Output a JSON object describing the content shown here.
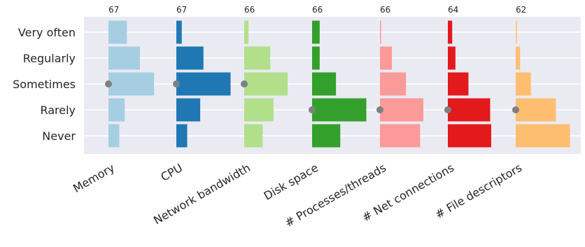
{
  "chart_data": {
    "type": "bar",
    "orientation": "horizontal-histograms",
    "levels": [
      "Very often",
      "Regularly",
      "Sometimes",
      "Rarely",
      "Never"
    ],
    "grid": true,
    "series": [
      {
        "name": "Memory",
        "count": "67",
        "values": [
          17,
          29,
          42,
          15,
          10
        ],
        "median": "Sometimes",
        "color": "#a6cee3"
      },
      {
        "name": "CPU",
        "count": "67",
        "values": [
          5,
          25,
          50,
          22,
          10
        ],
        "median": "Sometimes",
        "color": "#1f78b4"
      },
      {
        "name": "Network bandwidth",
        "count": "66",
        "values": [
          4,
          24,
          40,
          27,
          17
        ],
        "median": "Sometimes",
        "color": "#b2df8a"
      },
      {
        "name": "Disk space",
        "count": "66",
        "values": [
          7,
          7,
          22,
          50,
          26
        ],
        "median": "Rarely",
        "color": "#33a02c"
      },
      {
        "name": "# Processes/threads",
        "count": "66",
        "values": [
          1,
          11,
          24,
          40,
          37
        ],
        "median": "Rarely",
        "color": "#fb9a99"
      },
      {
        "name": "# Net connections",
        "count": "64",
        "values": [
          4,
          7,
          19,
          39,
          40
        ],
        "median": "Rarely",
        "color": "#e31a1c"
      },
      {
        "name": "# File descriptors",
        "count": "62",
        "values": [
          1,
          4,
          14,
          37,
          50
        ],
        "median": "Rarely",
        "color": "#fdbf6f"
      }
    ]
  }
}
